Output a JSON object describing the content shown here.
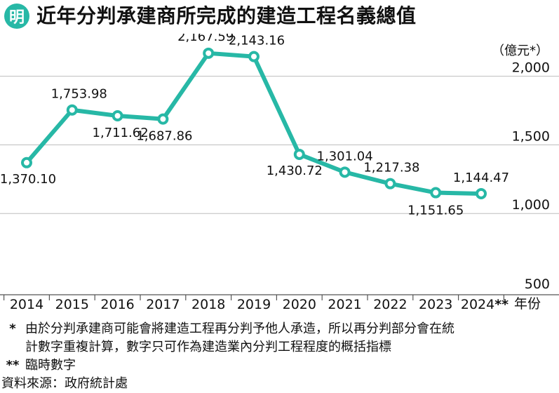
{
  "header": {
    "logo_char": "明",
    "title": "近年分判承建商所完成的建造工程名義總值"
  },
  "chart_data": {
    "type": "line",
    "categories": [
      "2014",
      "2015",
      "2016",
      "2017",
      "2018",
      "2019",
      "2020",
      "2021",
      "2022",
      "2023",
      "2024**"
    ],
    "values": [
      1370.1,
      1753.98,
      1711.62,
      1687.86,
      2167.59,
      2143.16,
      1430.72,
      1301.04,
      1217.38,
      1151.65,
      1144.47
    ],
    "value_labels": [
      "1,370.10",
      "1,753.98",
      "1,711.62",
      "1,687.86",
      "2,167.59",
      "2,143.16",
      "1,430.72",
      "1,301.04",
      "1,217.38",
      "1,151.65",
      "1,144.47"
    ],
    "ylim": [
      500,
      2400
    ],
    "y_ticks": [
      500,
      1000,
      1500,
      2000
    ],
    "y_tick_labels": [
      "500",
      "1,000",
      "1,500",
      "2,000"
    ],
    "y_unit": "（億元*）",
    "x_unit": "年份",
    "grid": true,
    "color": "#27b8a6"
  },
  "footnotes": {
    "note1_mark": "*",
    "note1_line1": "由於分判承建商可能會將建造工程再分判予他人承造，所以再分判部分會在統",
    "note1_line2": "計數字重複計算，數字只可作為建造業內分判工程程度的概括指標",
    "note2_mark": "**",
    "note2_text": "臨時數字",
    "source": "資料來源：政府統計處"
  }
}
